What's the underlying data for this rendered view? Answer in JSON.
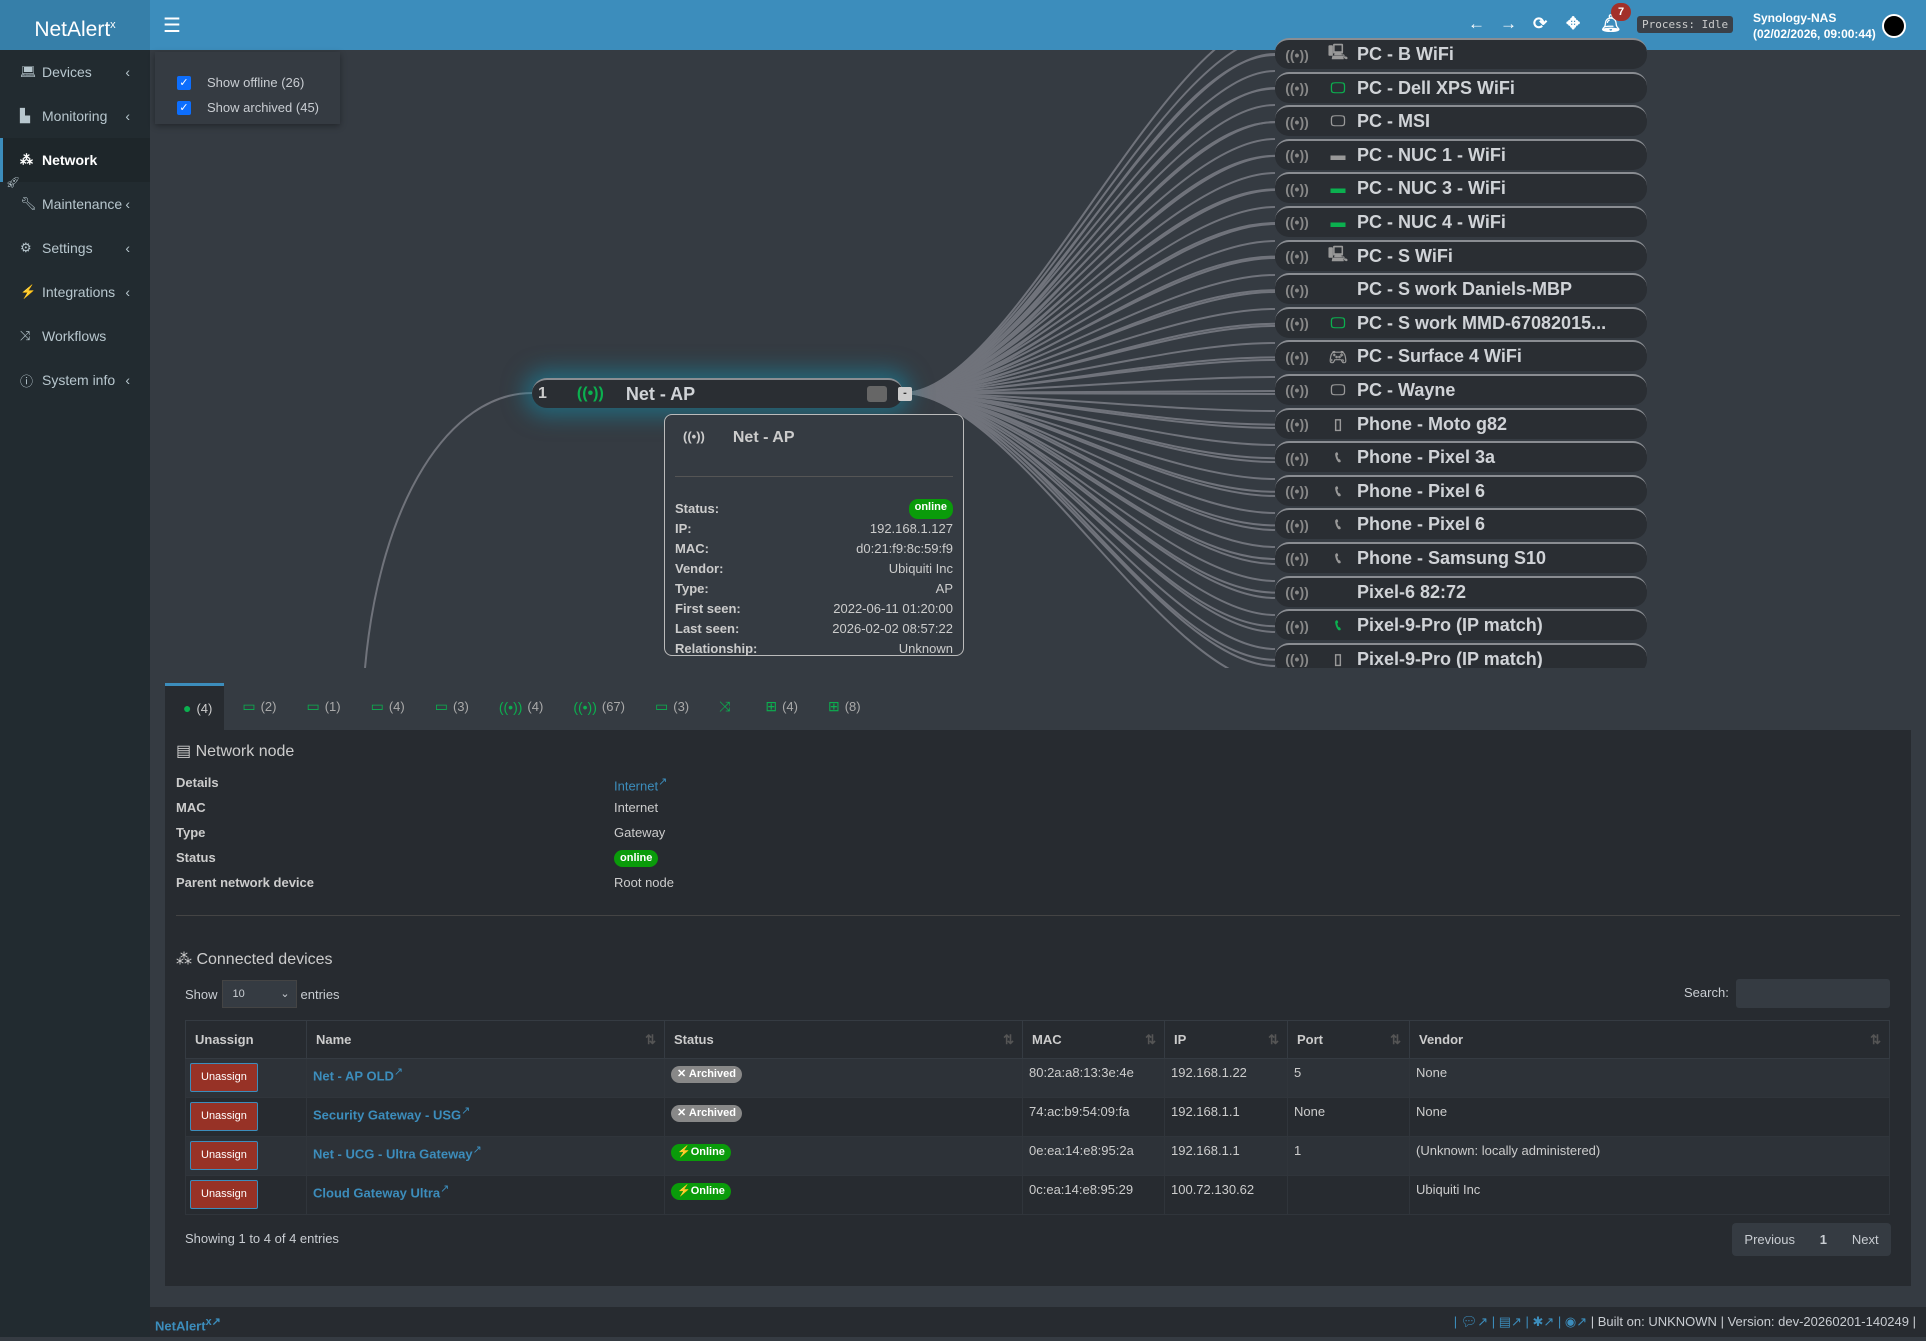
{
  "app": {
    "logo": "NetAlert",
    "logo_sup": "x",
    "process": "Process: Idle",
    "notifications": "7",
    "host": "Synology-NAS",
    "datetime": "(02/02/2026, 09:00:44)"
  },
  "sidebar": {
    "items": [
      {
        "label": "Devices",
        "icon": "laptop",
        "chev": true
      },
      {
        "label": "Monitoring",
        "icon": "chart",
        "chev": true
      },
      {
        "label": "Network",
        "icon": "sitemap",
        "active": true
      },
      {
        "label": "Maintenance",
        "icon": "wrench",
        "chev": true
      },
      {
        "label": "Settings",
        "icon": "gear",
        "chev": true
      },
      {
        "label": "Integrations",
        "icon": "plug",
        "chev": true
      },
      {
        "label": "Workflows",
        "icon": "shuffle"
      },
      {
        "label": "System info",
        "icon": "info",
        "chev": true
      }
    ]
  },
  "filters": {
    "offline": "Show offline (26)",
    "archived": "Show archived (45)"
  },
  "graph": {
    "ap_node": {
      "port": "1",
      "name": "Net - AP"
    },
    "devices": [
      {
        "name": "PC - B WiFi",
        "icon": "desktop-tower",
        "online": false
      },
      {
        "name": "PC - Dell XPS WiFi",
        "icon": "desktop",
        "online": true
      },
      {
        "name": "PC - MSI",
        "icon": "desktop",
        "online": false
      },
      {
        "name": "PC - NUC 1 - WiFi",
        "icon": "mini-pc",
        "online": false
      },
      {
        "name": "PC - NUC 3 - WiFi",
        "icon": "mini-pc",
        "online": true
      },
      {
        "name": "PC - NUC 4 - WiFi",
        "icon": "mini-pc",
        "online": true
      },
      {
        "name": "PC - S WiFi",
        "icon": "desktop-tower",
        "online": false
      },
      {
        "name": "PC - S work Daniels-MBP",
        "icon": "apple",
        "online": false
      },
      {
        "name": "PC - S work MMD-67082015...",
        "icon": "desktop",
        "online": true
      },
      {
        "name": "PC - Surface 4 WiFi",
        "icon": "gamepad",
        "online": false
      },
      {
        "name": "PC - Wayne",
        "icon": "desktop",
        "online": false
      },
      {
        "name": "Phone - Moto g82",
        "icon": "mobile",
        "online": false
      },
      {
        "name": "Phone - Pixel 3a",
        "icon": "phone",
        "online": false
      },
      {
        "name": "Phone - Pixel 6",
        "icon": "phone",
        "online": false
      },
      {
        "name": "Phone - Pixel 6",
        "icon": "phone",
        "online": false
      },
      {
        "name": "Phone - Samsung S10",
        "icon": "phone",
        "online": false
      },
      {
        "name": "Pixel-6 82:72",
        "icon": "apple",
        "online": false
      },
      {
        "name": "Pixel-9-Pro (IP match)",
        "icon": "phone",
        "online": true
      },
      {
        "name": "Pixel-9-Pro (IP match)",
        "icon": "mobile",
        "online": false
      }
    ]
  },
  "tooltip": {
    "title": "Net - AP",
    "rows": [
      {
        "k": "Status:",
        "v": "online",
        "pill": true
      },
      {
        "k": "IP:",
        "v": "192.168.1.127"
      },
      {
        "k": "MAC:",
        "v": "d0:21:f9:8c:59:f9"
      },
      {
        "k": "Vendor:",
        "v": "Ubiquiti Inc"
      },
      {
        "k": "Type:",
        "v": "AP"
      },
      {
        "k": "First seen:",
        "v": "2022-06-11 01:20:00"
      },
      {
        "k": "Last seen:",
        "v": "2026-02-02 08:57:22"
      },
      {
        "k": "Relationship:",
        "v": "Unknown"
      }
    ]
  },
  "tabs": [
    {
      "icon": "globe",
      "count": "(4)",
      "active": true
    },
    {
      "icon": "router",
      "count": "(2)"
    },
    {
      "icon": "router",
      "count": "(1)"
    },
    {
      "icon": "router",
      "count": "(4)"
    },
    {
      "icon": "router",
      "count": "(3)"
    },
    {
      "icon": "wifi",
      "count": "(4)"
    },
    {
      "icon": "wifi",
      "count": "(67)"
    },
    {
      "icon": "router",
      "count": "(3)"
    },
    {
      "icon": "shuffle",
      "count": ""
    },
    {
      "icon": "network",
      "count": "(4)"
    },
    {
      "icon": "network",
      "count": "(8)"
    }
  ],
  "node": {
    "title": "Network node",
    "rows": [
      {
        "k": "Details",
        "v": "Internet",
        "link": true
      },
      {
        "k": "MAC",
        "v": "Internet"
      },
      {
        "k": "Type",
        "v": "Gateway"
      },
      {
        "k": "Status",
        "v": "online",
        "pill": true
      },
      {
        "k": "Parent network device",
        "v": "Root node"
      }
    ]
  },
  "connected": {
    "title": "Connected devices",
    "show": "Show",
    "entries": "entries",
    "page_size": "10",
    "search_label": "Search:",
    "columns": [
      "Unassign",
      "Name",
      "Status",
      "MAC",
      "IP",
      "Port",
      "Vendor"
    ],
    "rows": [
      {
        "btn": "Unassign",
        "name": "Net - AP OLD",
        "status": "Archived",
        "mac": "80:2a:a8:13:3e:4e",
        "ip": "192.168.1.22",
        "port": "5",
        "vendor": "None"
      },
      {
        "btn": "Unassign",
        "name": "Security Gateway - USG",
        "status": "Archived",
        "mac": "74:ac:b9:54:09:fa",
        "ip": "192.168.1.1",
        "port": "None",
        "vendor": "None"
      },
      {
        "btn": "Unassign",
        "name": "Net - UCG - Ultra Gateway",
        "status": "Online",
        "mac": "0e:ea:14:e8:95:2a",
        "ip": "192.168.1.1",
        "port": "1",
        "vendor": "(Unknown: locally administered)"
      },
      {
        "btn": "Unassign",
        "name": "Cloud Gateway Ultra",
        "status": "Online",
        "mac": "0c:ea:14:e8:95:29",
        "ip": "100.72.130.62",
        "port": "",
        "vendor": "Ubiquiti Inc"
      }
    ],
    "info": "Showing 1 to 4 of 4 entries",
    "prev": "Previous",
    "page": "1",
    "next": "Next"
  },
  "footer": {
    "brand": "NetAlert",
    "brand_sup": "x",
    "built": "Built on: UNKNOWN",
    "version": "Version: dev-20260201-140249"
  },
  "colors": {
    "header": "#3c8dbc",
    "online": "#0a9b0a",
    "archived": "#888888",
    "unassign": "#973226",
    "accent_icon": "#0bb04f"
  }
}
